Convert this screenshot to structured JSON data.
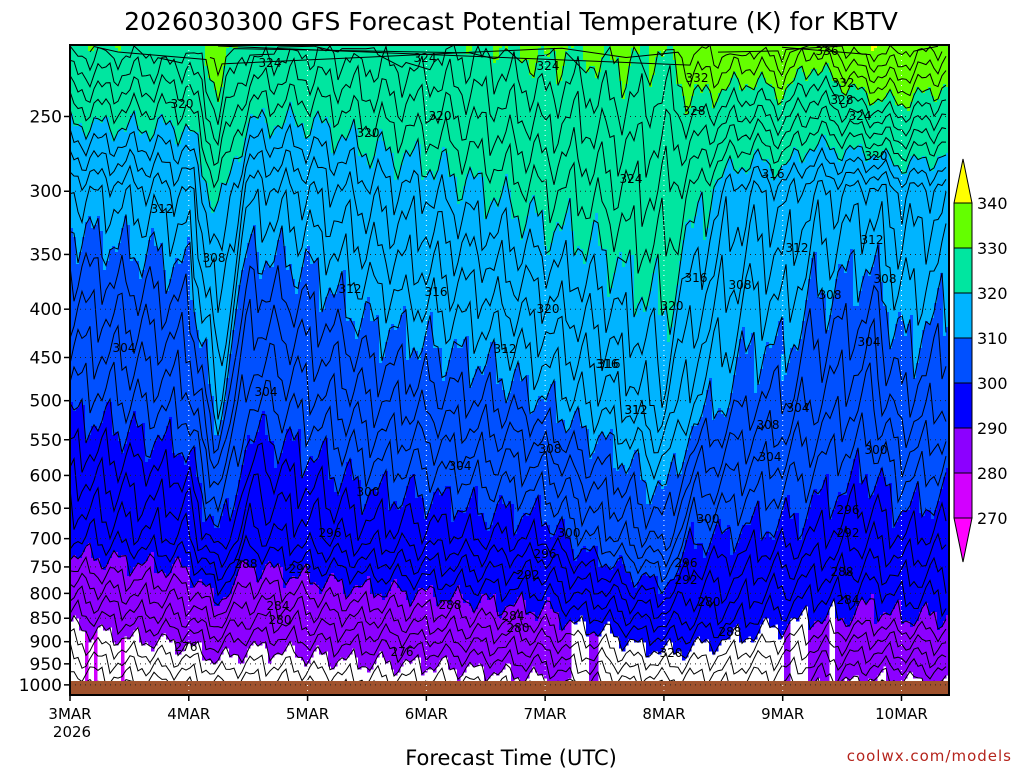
{
  "chart_data": {
    "type": "heatmap",
    "title": "2026030300 GFS Forecast Potential Temperature (K) for KBTV",
    "xlabel": "Forecast Time (UTC)",
    "ylabel": "",
    "x_ticks": [
      "3MAR",
      "4MAR",
      "5MAR",
      "6MAR",
      "7MAR",
      "8MAR",
      "9MAR",
      "10MAR"
    ],
    "x_tick_year": "2026",
    "y_ticks": [
      250,
      300,
      350,
      400,
      450,
      500,
      550,
      600,
      650,
      700,
      750,
      800,
      850,
      900,
      950,
      1000
    ],
    "y_axis": "pressure (hPa), log scale, inverted",
    "ylim": [
      1025,
      210
    ],
    "xlim_days": [
      0,
      7.4
    ],
    "grid": true,
    "color_levels": [
      270,
      280,
      290,
      300,
      310,
      320,
      330,
      340
    ],
    "colorbar_labels": [
      "340",
      "330",
      "320",
      "310",
      "300",
      "290",
      "280",
      "270"
    ],
    "colors": [
      "#ff00ff",
      "#d200ff",
      "#8c00ff",
      "#0000ff",
      "#0050ff",
      "#00b4ff",
      "#00e6a0",
      "#64ff00",
      "#ffff00"
    ],
    "ground_color": "#a0522d",
    "isentrope_interval": 2,
    "theta_columns": {
      "x_days": [
        0,
        0.5,
        1.0,
        1.25,
        1.5,
        2.0,
        2.5,
        3.0,
        3.5,
        4.0,
        4.25,
        4.5,
        4.75,
        5.0,
        5.25,
        5.5,
        5.75,
        6.0,
        6.25,
        6.5,
        6.75,
        7.0,
        7.4
      ],
      "pressure_levels": [
        1000,
        850,
        700,
        500,
        300,
        220
      ],
      "theta_K": [
        [
          272,
          281,
          292,
          301,
          312,
          327
        ],
        [
          273,
          283,
          293,
          302,
          313,
          327
        ],
        [
          274,
          284,
          294,
          303,
          314,
          326
        ],
        [
          276,
          287,
          300,
          312,
          322,
          332
        ],
        [
          275,
          284,
          293,
          302,
          313,
          326
        ],
        [
          276,
          285,
          295,
          303,
          314,
          325
        ],
        [
          277,
          286,
          297,
          306,
          317,
          326
        ],
        [
          277,
          287,
          297,
          307,
          318,
          327
        ],
        [
          278,
          288,
          298,
          308,
          320,
          328
        ],
        [
          279,
          289,
          298,
          310,
          322,
          330
        ],
        [
          281,
          291,
          301,
          312,
          322,
          329
        ],
        [
          282,
          292,
          303,
          313,
          323,
          330
        ],
        [
          284,
          294,
          305,
          315,
          324,
          330
        ],
        [
          285,
          295,
          307,
          317,
          324,
          329
        ],
        [
          285,
          294,
          300,
          312,
          322,
          333
        ],
        [
          284,
          293,
          300,
          310,
          318,
          333
        ],
        [
          283,
          292,
          299,
          308,
          316,
          332
        ],
        [
          282,
          291,
          299,
          308,
          317,
          334
        ],
        [
          281,
          290,
          298,
          306,
          314,
          330
        ],
        [
          280,
          290,
          297,
          305,
          314,
          333
        ],
        [
          279,
          289,
          296,
          304,
          313,
          336
        ],
        [
          279,
          290,
          298,
          308,
          316,
          336
        ],
        [
          280,
          290,
          297,
          306,
          315,
          333
        ]
      ]
    },
    "contour_labels": [
      "324",
      "324",
      "324",
      "320",
      "320",
      "320",
      "312",
      "308",
      "312",
      "316",
      "320",
      "312",
      "316",
      "312",
      "304",
      "304",
      "308",
      "304",
      "300",
      "296",
      "300",
      "296",
      "292",
      "288",
      "292",
      "284",
      "280",
      "276",
      "276",
      "288",
      "284",
      "280",
      "292",
      "296",
      "300",
      "304",
      "308",
      "312",
      "316",
      "320",
      "324",
      "328",
      "332",
      "336",
      "332",
      "328",
      "324",
      "320",
      "316",
      "312",
      "308",
      "304",
      "300",
      "296",
      "292",
      "288",
      "284",
      "280",
      "288",
      "320",
      "316",
      "312",
      "308",
      "304",
      "308"
    ]
  },
  "footer": {
    "year_label": "2026",
    "credit": "coolwx.com/models"
  }
}
